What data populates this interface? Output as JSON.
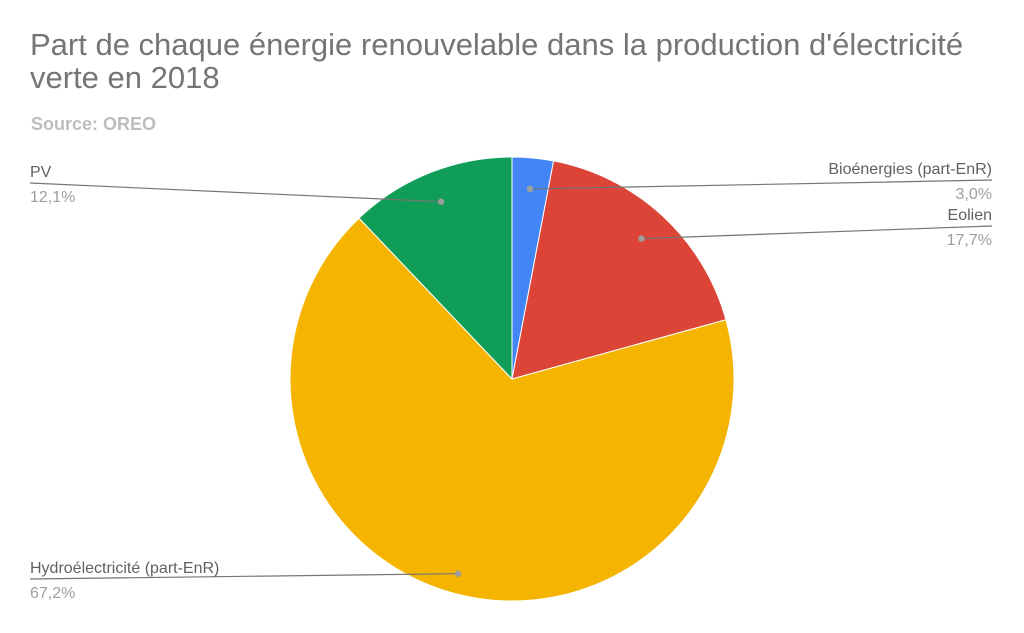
{
  "title": "Part de chaque énergie renouvelable dans la production d'électricité verte en 2018",
  "subtitle": "Source: OREO",
  "chart_data": {
    "type": "pie",
    "title": "Part de chaque énergie renouvelable dans la production d'électricité verte en 2018",
    "subtitle": "Source: OREO",
    "slices": [
      {
        "label": "Bioénergies (part-EnR)",
        "value": 3.0,
        "display": "3,0%",
        "color": "#4285f4"
      },
      {
        "label": "Eolien",
        "value": 17.7,
        "display": "17,7%",
        "color": "#db4437"
      },
      {
        "label": "Hydroélectricité (part-EnR)",
        "value": 67.2,
        "display": "67,2%",
        "color": "#f4b400"
      },
      {
        "label": "PV",
        "value": 12.1,
        "display": "12,1%",
        "color": "#0f9d58"
      }
    ],
    "legend": "labeled leader lines"
  }
}
